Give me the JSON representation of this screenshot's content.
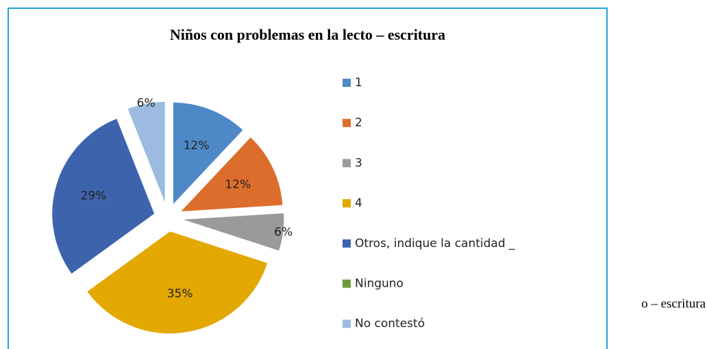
{
  "chart_data": {
    "type": "pie",
    "title": "Niños con problemas en la lecto – escritura",
    "categories": [
      "1",
      "2",
      "3",
      "4",
      "Otros, indique la cantidad _",
      "Ninguno",
      "No contestó"
    ],
    "values": [
      12,
      12,
      6,
      35,
      29,
      0,
      6
    ],
    "value_labels": [
      "12%",
      "12%",
      "6%",
      "35%",
      "29%",
      null,
      "6%"
    ],
    "colors": [
      "#4f88c6",
      "#dc6d2c",
      "#9a9a9a",
      "#e3a802",
      "#3d63ad",
      "#6a9a3a",
      "#9dbbe0"
    ],
    "exploded": true,
    "legend": "right"
  },
  "background_text": "o – escritura"
}
